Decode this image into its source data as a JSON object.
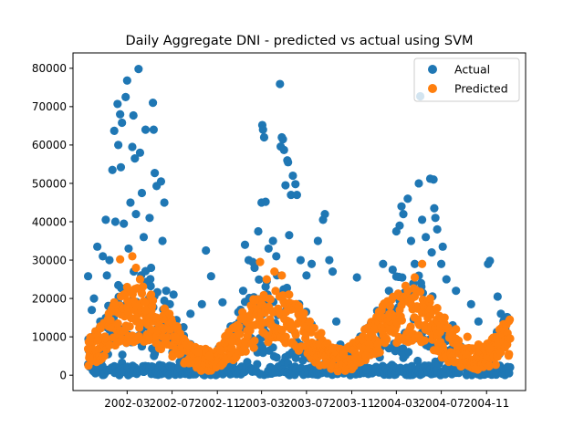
{
  "chart_data": {
    "type": "scatter",
    "title": "Daily Aggregate DNI - predicted vs actual using SVM",
    "xlabel": "",
    "ylabel": "",
    "x_type": "date",
    "xlim": [
      "2001-10-05",
      "2005-02-15"
    ],
    "ylim": [
      -4000,
      84000
    ],
    "x_ticks": [
      "2002-03",
      "2002-07",
      "2002-11",
      "2003-03",
      "2003-07",
      "2003-11",
      "2004-03",
      "2004-07",
      "2004-11"
    ],
    "y_ticks": [
      0,
      10000,
      20000,
      30000,
      40000,
      50000,
      60000,
      70000,
      80000
    ],
    "y_tick_labels": [
      "0",
      "10000",
      "20000",
      "30000",
      "40000",
      "50000",
      "60000",
      "70000",
      "80000"
    ],
    "grid": false,
    "legend_position": "top-right",
    "series": [
      {
        "name": "Actual",
        "color": "#1f77b4",
        "points": [
          {
            "x": "2001-11-15",
            "y": 25800
          },
          {
            "x": "2001-11-20",
            "y": 9000
          },
          {
            "x": "2001-11-25",
            "y": 17000
          },
          {
            "x": "2001-12-01",
            "y": 20000
          },
          {
            "x": "2001-12-05",
            "y": 500
          },
          {
            "x": "2001-12-10",
            "y": 33500
          },
          {
            "x": "2001-12-18",
            "y": 14000
          },
          {
            "x": "2001-12-25",
            "y": 31000
          },
          {
            "x": "2002-01-02",
            "y": 40500
          },
          {
            "x": "2002-01-05",
            "y": 26000
          },
          {
            "x": "2002-01-12",
            "y": 30000
          },
          {
            "x": "2002-01-20",
            "y": 53500
          },
          {
            "x": "2002-01-25",
            "y": 63700
          },
          {
            "x": "2002-01-28",
            "y": 40000
          },
          {
            "x": "2002-02-03",
            "y": 70700
          },
          {
            "x": "2002-02-05",
            "y": 60000
          },
          {
            "x": "2002-02-10",
            "y": 68000
          },
          {
            "x": "2002-02-12",
            "y": 54200
          },
          {
            "x": "2002-02-15",
            "y": 65800
          },
          {
            "x": "2002-02-20",
            "y": 39500
          },
          {
            "x": "2002-02-25",
            "y": 72500
          },
          {
            "x": "2002-03-01",
            "y": 76800
          },
          {
            "x": "2002-03-05",
            "y": 33000
          },
          {
            "x": "2002-03-10",
            "y": 45000
          },
          {
            "x": "2002-03-15",
            "y": 59500
          },
          {
            "x": "2002-03-18",
            "y": 67700
          },
          {
            "x": "2002-03-22",
            "y": 56500
          },
          {
            "x": "2002-03-25",
            "y": 42000
          },
          {
            "x": "2002-04-01",
            "y": 79800
          },
          {
            "x": "2002-04-05",
            "y": 58000
          },
          {
            "x": "2002-04-10",
            "y": 47500
          },
          {
            "x": "2002-04-15",
            "y": 36000
          },
          {
            "x": "2002-04-20",
            "y": 64000
          },
          {
            "x": "2002-05-01",
            "y": 41000
          },
          {
            "x": "2002-05-05",
            "y": 28000
          },
          {
            "x": "2002-05-10",
            "y": 71000
          },
          {
            "x": "2002-05-12",
            "y": 64000
          },
          {
            "x": "2002-05-15",
            "y": 52700
          },
          {
            "x": "2002-05-20",
            "y": 49300
          },
          {
            "x": "2002-06-01",
            "y": 50500
          },
          {
            "x": "2002-06-05",
            "y": 35000
          },
          {
            "x": "2002-06-10",
            "y": 45000
          },
          {
            "x": "2002-06-15",
            "y": 22000
          },
          {
            "x": "2002-06-25",
            "y": 18500
          },
          {
            "x": "2002-07-05",
            "y": 21000
          },
          {
            "x": "2002-07-20",
            "y": 2000
          },
          {
            "x": "2002-08-01",
            "y": 12500
          },
          {
            "x": "2002-08-10",
            "y": 6000
          },
          {
            "x": "2002-08-20",
            "y": 16000
          },
          {
            "x": "2002-09-01",
            "y": 3000
          },
          {
            "x": "2002-09-20",
            "y": 18500
          },
          {
            "x": "2002-10-01",
            "y": 32500
          },
          {
            "x": "2002-10-15",
            "y": 25800
          },
          {
            "x": "2002-11-01",
            "y": 6000
          },
          {
            "x": "2002-11-15",
            "y": 19000
          },
          {
            "x": "2002-12-01",
            "y": 10000
          },
          {
            "x": "2002-12-20",
            "y": 13000
          },
          {
            "x": "2003-01-10",
            "y": 22000
          },
          {
            "x": "2003-01-15",
            "y": 34000
          },
          {
            "x": "2003-01-25",
            "y": 30000
          },
          {
            "x": "2003-02-05",
            "y": 29500
          },
          {
            "x": "2003-02-10",
            "y": 28000
          },
          {
            "x": "2003-02-20",
            "y": 37500
          },
          {
            "x": "2003-03-01",
            "y": 45000
          },
          {
            "x": "2003-03-03",
            "y": 65200
          },
          {
            "x": "2003-03-05",
            "y": 64000
          },
          {
            "x": "2003-03-08",
            "y": 62000
          },
          {
            "x": "2003-03-12",
            "y": 45200
          },
          {
            "x": "2003-03-20",
            "y": 33000
          },
          {
            "x": "2003-04-01",
            "y": 35000
          },
          {
            "x": "2003-04-10",
            "y": 31000
          },
          {
            "x": "2003-04-20",
            "y": 75900
          },
          {
            "x": "2003-04-22",
            "y": 59600
          },
          {
            "x": "2003-04-25",
            "y": 62000
          },
          {
            "x": "2003-04-28",
            "y": 61500
          },
          {
            "x": "2003-05-01",
            "y": 58700
          },
          {
            "x": "2003-05-05",
            "y": 49500
          },
          {
            "x": "2003-05-10",
            "y": 56000
          },
          {
            "x": "2003-05-12",
            "y": 55500
          },
          {
            "x": "2003-05-15",
            "y": 36500
          },
          {
            "x": "2003-05-20",
            "y": 47000
          },
          {
            "x": "2003-05-25",
            "y": 52000
          },
          {
            "x": "2003-06-01",
            "y": 49800
          },
          {
            "x": "2003-06-05",
            "y": 47000
          },
          {
            "x": "2003-06-15",
            "y": 30000
          },
          {
            "x": "2003-07-01",
            "y": 26000
          },
          {
            "x": "2003-07-15",
            "y": 29000
          },
          {
            "x": "2003-08-01",
            "y": 35000
          },
          {
            "x": "2003-08-15",
            "y": 40500
          },
          {
            "x": "2003-08-20",
            "y": 42000
          },
          {
            "x": "2003-09-01",
            "y": 30000
          },
          {
            "x": "2003-09-10",
            "y": 27000
          },
          {
            "x": "2003-09-20",
            "y": 14000
          },
          {
            "x": "2003-10-01",
            "y": 8000
          },
          {
            "x": "2003-10-20",
            "y": 2000
          },
          {
            "x": "2003-11-15",
            "y": 25500
          },
          {
            "x": "2003-12-10",
            "y": 1500
          },
          {
            "x": "2004-01-10",
            "y": 9000
          },
          {
            "x": "2004-01-25",
            "y": 29000
          },
          {
            "x": "2004-02-10",
            "y": 22000
          },
          {
            "x": "2004-02-20",
            "y": 27500
          },
          {
            "x": "2004-03-01",
            "y": 37500
          },
          {
            "x": "2004-03-10",
            "y": 39000
          },
          {
            "x": "2004-03-15",
            "y": 44000
          },
          {
            "x": "2004-03-20",
            "y": 42000
          },
          {
            "x": "2004-04-01",
            "y": 46000
          },
          {
            "x": "2004-04-10",
            "y": 35000
          },
          {
            "x": "2004-04-20",
            "y": 29000
          },
          {
            "x": "2004-05-01",
            "y": 50000
          },
          {
            "x": "2004-05-05",
            "y": 72700
          },
          {
            "x": "2004-05-10",
            "y": 40500
          },
          {
            "x": "2004-05-20",
            "y": 36000
          },
          {
            "x": "2004-06-01",
            "y": 51200
          },
          {
            "x": "2004-06-05",
            "y": 32000
          },
          {
            "x": "2004-06-10",
            "y": 51000
          },
          {
            "x": "2004-06-12",
            "y": 43500
          },
          {
            "x": "2004-06-15",
            "y": 41000
          },
          {
            "x": "2004-06-20",
            "y": 38000
          },
          {
            "x": "2004-07-01",
            "y": 29000
          },
          {
            "x": "2004-07-05",
            "y": 33500
          },
          {
            "x": "2004-07-15",
            "y": 25000
          },
          {
            "x": "2004-08-01",
            "y": 13000
          },
          {
            "x": "2004-08-10",
            "y": 22000
          },
          {
            "x": "2004-09-01",
            "y": 3000
          },
          {
            "x": "2004-09-20",
            "y": 18500
          },
          {
            "x": "2004-10-10",
            "y": 14000
          },
          {
            "x": "2004-11-05",
            "y": 29000
          },
          {
            "x": "2004-11-10",
            "y": 29800
          },
          {
            "x": "2004-12-01",
            "y": 20500
          },
          {
            "x": "2004-12-10",
            "y": 16000
          },
          {
            "x": "2004-12-25",
            "y": 10500
          },
          {
            "x": "2005-01-01",
            "y": 500
          }
        ]
      },
      {
        "name": "Predicted",
        "color": "#ff7f0e",
        "points": [
          {
            "x": "2001-11-18",
            "y": 4500
          },
          {
            "x": "2001-12-10",
            "y": 9000
          },
          {
            "x": "2002-01-10",
            "y": 16000
          },
          {
            "x": "2002-01-25",
            "y": 19000
          },
          {
            "x": "2002-02-10",
            "y": 30200
          },
          {
            "x": "2002-02-20",
            "y": 21000
          },
          {
            "x": "2002-03-01",
            "y": 23000
          },
          {
            "x": "2002-03-15",
            "y": 31000
          },
          {
            "x": "2002-03-25",
            "y": 28000
          },
          {
            "x": "2002-04-05",
            "y": 25000
          },
          {
            "x": "2002-04-20",
            "y": 17000
          },
          {
            "x": "2002-05-05",
            "y": 21000
          },
          {
            "x": "2002-05-20",
            "y": 15000
          },
          {
            "x": "2002-06-10",
            "y": 12000
          },
          {
            "x": "2002-07-10",
            "y": 10000
          },
          {
            "x": "2002-08-10",
            "y": 8000
          },
          {
            "x": "2002-09-10",
            "y": 6000
          },
          {
            "x": "2002-10-10",
            "y": 5000
          },
          {
            "x": "2002-11-10",
            "y": 6500
          },
          {
            "x": "2002-12-10",
            "y": 9000
          },
          {
            "x": "2003-01-10",
            "y": 15000
          },
          {
            "x": "2003-02-10",
            "y": 19500
          },
          {
            "x": "2003-02-25",
            "y": 29500
          },
          {
            "x": "2003-03-15",
            "y": 25000
          },
          {
            "x": "2003-04-05",
            "y": 27000
          },
          {
            "x": "2003-04-25",
            "y": 26000
          },
          {
            "x": "2003-05-15",
            "y": 21000
          },
          {
            "x": "2003-06-10",
            "y": 18000
          },
          {
            "x": "2003-07-10",
            "y": 14000
          },
          {
            "x": "2003-08-10",
            "y": 11000
          },
          {
            "x": "2003-09-10",
            "y": 7000
          },
          {
            "x": "2003-10-10",
            "y": 5500
          },
          {
            "x": "2003-11-10",
            "y": 4500
          },
          {
            "x": "2003-12-10",
            "y": 5000
          },
          {
            "x": "2004-01-10",
            "y": 8000
          },
          {
            "x": "2004-02-10",
            "y": 12000
          },
          {
            "x": "2004-03-10",
            "y": 17000
          },
          {
            "x": "2004-04-01",
            "y": 22000
          },
          {
            "x": "2004-04-20",
            "y": 25500
          },
          {
            "x": "2004-05-10",
            "y": 29000
          },
          {
            "x": "2004-06-01",
            "y": 20000
          },
          {
            "x": "2004-06-20",
            "y": 17500
          },
          {
            "x": "2004-07-10",
            "y": 15000
          },
          {
            "x": "2004-08-10",
            "y": 12000
          },
          {
            "x": "2004-09-10",
            "y": 10000
          },
          {
            "x": "2004-10-10",
            "y": 8000
          },
          {
            "x": "2004-11-10",
            "y": 7000
          },
          {
            "x": "2004-12-10",
            "y": 6000
          },
          {
            "x": "2005-01-01",
            "y": 5500
          }
        ]
      }
    ]
  }
}
